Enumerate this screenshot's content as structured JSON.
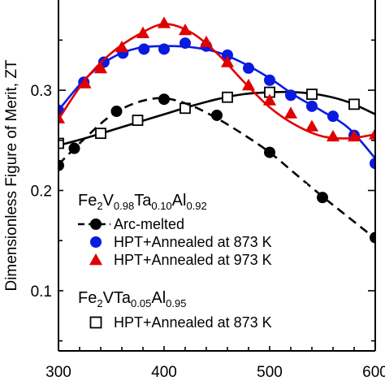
{
  "chart_data": {
    "type": "scatter",
    "title": "",
    "xlabel": "",
    "ylabel": "Dimensionless Figure of Merit, ZT",
    "xlim": [
      300,
      600
    ],
    "ylim": [
      0.04,
      0.39
    ],
    "x_ticks": [
      300,
      400,
      500,
      600
    ],
    "x_tick_labels": [
      "300",
      "400",
      "500",
      "600"
    ],
    "y_ticks": [
      0.1,
      0.2,
      0.3
    ],
    "y_tick_labels": [
      "0.1",
      "0.2",
      "0.3"
    ],
    "grid": false,
    "legend_groups": [
      {
        "formula_parts": [
          {
            "text": "Fe",
            "sub": false
          },
          {
            "text": "2",
            "sub": true
          },
          {
            "text": "V",
            "sub": false
          },
          {
            "text": "0.98",
            "sub": true
          },
          {
            "text": "Ta",
            "sub": false
          },
          {
            "text": "0.10",
            "sub": true
          },
          {
            "text": "Al",
            "sub": false
          },
          {
            "text": "0.92",
            "sub": true
          }
        ]
      },
      {
        "formula_parts": [
          {
            "text": "Fe",
            "sub": false
          },
          {
            "text": "2",
            "sub": true
          },
          {
            "text": "VTa",
            "sub": false
          },
          {
            "text": "0.05",
            "sub": true
          },
          {
            "text": "Al",
            "sub": false
          },
          {
            "text": "0.95",
            "sub": true
          }
        ]
      }
    ],
    "series": [
      {
        "name": "Arc-melted",
        "group": 0,
        "marker": "circle",
        "filled": true,
        "color": "#000000",
        "line_style": "dashed",
        "points": [
          [
            300,
            0.225
          ],
          [
            315,
            0.242
          ],
          [
            355,
            0.279
          ],
          [
            400,
            0.291
          ],
          [
            450,
            0.275
          ],
          [
            500,
            0.238
          ],
          [
            550,
            0.193
          ],
          [
            600,
            0.153
          ]
        ],
        "curve": [
          [
            300,
            0.226
          ],
          [
            325,
            0.252
          ],
          [
            350,
            0.275
          ],
          [
            375,
            0.288
          ],
          [
            400,
            0.292
          ],
          [
            425,
            0.285
          ],
          [
            450,
            0.272
          ],
          [
            475,
            0.256
          ],
          [
            500,
            0.238
          ],
          [
            525,
            0.216
          ],
          [
            550,
            0.194
          ],
          [
            575,
            0.173
          ],
          [
            600,
            0.152
          ]
        ]
      },
      {
        "name": "HPT+Annealed at 873 K",
        "group": 0,
        "marker": "circle",
        "filled": true,
        "color": "#0a1adf",
        "line_style": "solid",
        "points": [
          [
            300,
            0.28
          ],
          [
            324,
            0.308
          ],
          [
            343,
            0.328
          ],
          [
            361,
            0.337
          ],
          [
            381,
            0.341
          ],
          [
            400,
            0.341
          ],
          [
            420,
            0.347
          ],
          [
            440,
            0.344
          ],
          [
            460,
            0.335
          ],
          [
            480,
            0.322
          ],
          [
            500,
            0.31
          ],
          [
            520,
            0.295
          ],
          [
            540,
            0.284
          ],
          [
            560,
            0.274
          ],
          [
            580,
            0.255
          ],
          [
            600,
            0.227
          ]
        ],
        "curve": [
          [
            300,
            0.28
          ],
          [
            325,
            0.311
          ],
          [
            350,
            0.332
          ],
          [
            375,
            0.342
          ],
          [
            400,
            0.344
          ],
          [
            425,
            0.343
          ],
          [
            450,
            0.338
          ],
          [
            475,
            0.327
          ],
          [
            500,
            0.312
          ],
          [
            525,
            0.294
          ],
          [
            550,
            0.279
          ],
          [
            575,
            0.262
          ],
          [
            600,
            0.232
          ]
        ]
      },
      {
        "name": "HPT+Annealed at 973 K",
        "group": 0,
        "marker": "triangle",
        "filled": true,
        "color": "#e00000",
        "line_style": "solid",
        "points": [
          [
            300,
            0.272
          ],
          [
            325,
            0.307
          ],
          [
            340,
            0.322
          ],
          [
            360,
            0.343
          ],
          [
            380,
            0.357
          ],
          [
            400,
            0.367
          ],
          [
            420,
            0.36
          ],
          [
            440,
            0.348
          ],
          [
            460,
            0.328
          ],
          [
            480,
            0.305
          ],
          [
            500,
            0.29
          ],
          [
            520,
            0.277
          ],
          [
            540,
            0.264
          ],
          [
            560,
            0.254
          ],
          [
            580,
            0.254
          ],
          [
            600,
            0.256
          ]
        ],
        "curve": [
          [
            300,
            0.271
          ],
          [
            325,
            0.31
          ],
          [
            350,
            0.337
          ],
          [
            375,
            0.355
          ],
          [
            400,
            0.366
          ],
          [
            425,
            0.358
          ],
          [
            450,
            0.337
          ],
          [
            475,
            0.309
          ],
          [
            500,
            0.283
          ],
          [
            525,
            0.265
          ],
          [
            550,
            0.254
          ],
          [
            575,
            0.252
          ],
          [
            600,
            0.256
          ]
        ]
      },
      {
        "name": "HPT+Annealed at 873 K",
        "group": 1,
        "marker": "square",
        "filled": false,
        "color": "#000000",
        "line_style": "solid",
        "points": [
          [
            300,
            0.247
          ],
          [
            340,
            0.257
          ],
          [
            375,
            0.27
          ],
          [
            420,
            0.282
          ],
          [
            460,
            0.293
          ],
          [
            500,
            0.298
          ],
          [
            540,
            0.296
          ],
          [
            580,
            0.286
          ]
        ],
        "curve": [
          [
            300,
            0.245
          ],
          [
            325,
            0.252
          ],
          [
            350,
            0.26
          ],
          [
            375,
            0.268
          ],
          [
            400,
            0.276
          ],
          [
            425,
            0.284
          ],
          [
            450,
            0.291
          ],
          [
            475,
            0.296
          ],
          [
            500,
            0.298
          ],
          [
            525,
            0.298
          ],
          [
            550,
            0.295
          ],
          [
            575,
            0.288
          ],
          [
            600,
            0.276
          ]
        ]
      }
    ]
  }
}
